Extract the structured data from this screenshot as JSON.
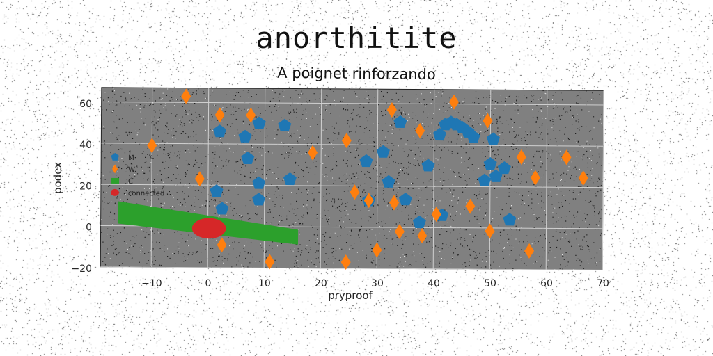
{
  "chart_data": {
    "type": "scatter",
    "title": "anorthitite",
    "subtitle": "A poignet rinforzando",
    "xlabel": "pryproof",
    "ylabel": "podex",
    "xlim": [
      -19,
      70
    ],
    "ylim": [
      -20,
      67
    ],
    "xticks": [
      -10,
      0,
      10,
      20,
      30,
      40,
      50,
      60,
      70
    ],
    "yticks": [
      -20,
      0,
      20,
      40,
      60
    ],
    "grid": true,
    "legend": "left",
    "background": "#808080",
    "series": [
      {
        "name": "M",
        "marker": "pentagon",
        "color": "#1f77b4",
        "points": [
          [
            2,
            46
          ],
          [
            6.5,
            43.5
          ],
          [
            9,
            50
          ],
          [
            13.5,
            49
          ],
          [
            7,
            33
          ],
          [
            9,
            21
          ],
          [
            14.5,
            23
          ],
          [
            9,
            13
          ],
          [
            1.5,
            17
          ],
          [
            2.5,
            8.5
          ],
          [
            28,
            32
          ],
          [
            31,
            36.5
          ],
          [
            32,
            22
          ],
          [
            28.5,
            13
          ],
          [
            34,
            51
          ],
          [
            35,
            13.5
          ],
          [
            37.5,
            2.5
          ],
          [
            39,
            30
          ],
          [
            41.5,
            6
          ],
          [
            41,
            45
          ],
          [
            42,
            50
          ],
          [
            43,
            51
          ],
          [
            44,
            50
          ],
          [
            45,
            48.5
          ],
          [
            46,
            46.5
          ],
          [
            47,
            44
          ],
          [
            50.5,
            43
          ],
          [
            50,
            31
          ],
          [
            51,
            25
          ],
          [
            49,
            23
          ],
          [
            52.5,
            29
          ],
          [
            53.5,
            4
          ]
        ]
      },
      {
        "name": "W.",
        "marker": "thin_diamond",
        "color": "#ff7f0e",
        "points": [
          [
            -4,
            63
          ],
          [
            -10,
            39
          ],
          [
            2,
            54
          ],
          [
            7.5,
            54
          ],
          [
            -1.5,
            23
          ],
          [
            2.5,
            -9
          ],
          [
            11,
            -17
          ],
          [
            18.5,
            36
          ],
          [
            24.5,
            42
          ],
          [
            26,
            17
          ],
          [
            28.5,
            13
          ],
          [
            24.5,
            -17
          ],
          [
            30,
            -11
          ],
          [
            32.5,
            57
          ],
          [
            33,
            12
          ],
          [
            34,
            -2
          ],
          [
            37.5,
            47
          ],
          [
            38,
            -4
          ],
          [
            40.5,
            6.5
          ],
          [
            43.5,
            61
          ],
          [
            46.5,
            10.5
          ],
          [
            49.5,
            52
          ],
          [
            50,
            -1.5
          ],
          [
            55.5,
            34.5
          ],
          [
            57,
            -11
          ],
          [
            58,
            24.5
          ],
          [
            63.5,
            34.5
          ],
          [
            66.5,
            24.5
          ]
        ]
      },
      {
        "name": "C",
        "marker": "band",
        "color": "#2ca02c",
        "start": [
          -16,
          6.5
        ],
        "end": [
          16,
          -5
        ],
        "width": [
          6,
          4
        ]
      },
      {
        "name": "connected",
        "marker": "blob",
        "color": "#d62728",
        "center": [
          0.2,
          -1
        ],
        "radius": [
          3,
          5
        ]
      }
    ]
  }
}
